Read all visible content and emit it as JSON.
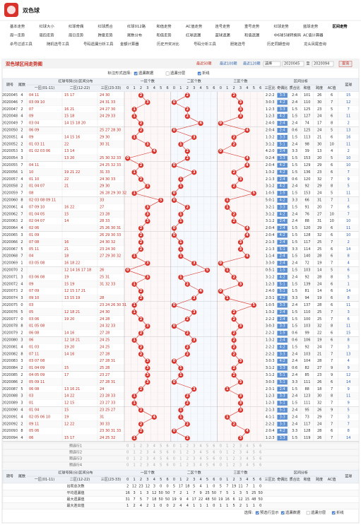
{
  "header": {
    "title": "双色球"
  },
  "nav": [
    [
      "基本走势",
      "红球大小",
      "红球奇偶",
      "红球质合",
      "红球012路",
      "和值走势",
      "AC值走势",
      "连号走势",
      "重号走势",
      "红球走势",
      "蓝球走势",
      "区间走势"
    ],
    [
      "周一走势",
      "周四走势",
      "周日走势",
      "跨度走势",
      "尾数分布",
      "和值走势",
      "红球遗漏",
      "蓝球遗漏",
      "和值遗漏",
      "中6球5球转换码",
      "AC值计算器"
    ],
    [
      "杀号过滤工具",
      "随机选号工具",
      "号码遗漏分析工具",
      "金额计算器",
      "历史开奖对比",
      "号码分析工具",
      "胆拖选号",
      "历史同期查询",
      "龙头凤尾查询"
    ]
  ],
  "nav_active": "区间走势",
  "panel": {
    "title": "双色球区间走势图",
    "ranges": [
      "最近50期",
      "最近100期",
      "最近120期"
    ],
    "select": "选择",
    "from": "2020045",
    "to_label": "至",
    "to": "2020094",
    "button": "查询"
  },
  "marking": {
    "label": "标注形式选择:",
    "options": [
      {
        "label": "遗漏数据",
        "checked": true
      },
      {
        "label": "遗漏分层",
        "checked": false
      },
      {
        "label": "折线",
        "checked": true
      }
    ]
  },
  "table": {
    "headers": {
      "period": "期号",
      "tail": "尾数",
      "zones_group": "红球号码(分)区间分布",
      "zones": [
        "一区(01-11)",
        "二区(12-22)",
        "三区(23-33)"
      ],
      "count_groups": [
        "一区个数",
        "二区个数",
        "三区个数"
      ],
      "digits": [
        0,
        1,
        2,
        3,
        4,
        5,
        6
      ],
      "analysis_group": "区间分析",
      "analysis": [
        "三区比",
        "奇偶比",
        "质合比",
        "和值",
        "跨度",
        "AC值"
      ],
      "blue": "蓝球"
    },
    "rows": [
      [
        "2020045",
        4,
        "04 11",
        "15 17",
        "24 30",
        2,
        2,
        2,
        "2:2:2",
        "3:3",
        "2:4",
        101,
        26,
        6,
        15
      ],
      [
        "2020046",
        7,
        "03 09 10",
        "",
        "24 31 33",
        3,
        0,
        3,
        "3:0:3",
        "4:2",
        "2:4",
        110,
        30,
        7,
        12
      ],
      [
        "2020047",
        2,
        "07",
        "16 21",
        "24 27 30",
        1,
        2,
        3,
        "1:2:3",
        "3:3",
        "1:5",
        125,
        23,
        5,
        7
      ],
      [
        "2020048",
        4,
        "09",
        "15 18",
        "24 29 33",
        1,
        2,
        3,
        "1:2:3",
        "4:2",
        "1:5",
        127,
        24,
        6,
        11
      ],
      [
        "2020049",
        7,
        "03 04",
        "14 15 18 20",
        "",
        2,
        4,
        0,
        "2:4:0",
        "2:4",
        "2:4",
        74,
        17,
        8,
        2
      ],
      [
        "2020050",
        2,
        "06 09",
        "",
        "25 27 28 30",
        2,
        0,
        4,
        "2:0:4",
        "2:4",
        "0:6",
        125,
        24,
        5,
        13
      ],
      [
        "2020051",
        4,
        "09",
        "14 15 16",
        "29 30",
        1,
        3,
        2,
        "1:3:2",
        "3:3",
        "1:5",
        113,
        21,
        6,
        16
      ],
      [
        "2020052",
        2,
        "01 03 11",
        "22",
        "30 31",
        3,
        1,
        2,
        "3:1:2",
        "5:1",
        "2:4",
        98,
        30,
        10,
        11
      ],
      [
        "2020053",
        3,
        "01 02 03 06",
        "13 14",
        "",
        4,
        2,
        0,
        "4:2:0",
        "2:4",
        "3:3",
        39,
        13,
        4,
        2
      ],
      [
        "2020054",
        3,
        "",
        "13 20",
        "25 30 32 33",
        0,
        2,
        4,
        "0:2:4",
        "3:3",
        "1:5",
        153,
        20,
        5,
        10
      ],
      [
        "2020055",
        7,
        "04 11",
        "",
        "24 25 32 33",
        2,
        0,
        4,
        "2:0:4",
        "4:2",
        "1:5",
        129,
        29,
        6,
        10
      ],
      [
        "2020056",
        1,
        "10",
        "19 21 22",
        "31 33",
        1,
        3,
        2,
        "1:3:2",
        "4:2",
        "1:5",
        136,
        23,
        6,
        7
      ],
      [
        "2020057",
        4,
        "01 10",
        "22",
        "24 30 33",
        2,
        1,
        3,
        "2:1:3",
        "2:4",
        "0:6",
        120,
        32,
        7,
        9
      ],
      [
        "2020058",
        2,
        "01 04 07",
        "21",
        "29 30",
        3,
        1,
        2,
        "3:1:2",
        "4:2",
        "2:4",
        92,
        29,
        8,
        5
      ],
      [
        "2020059",
        7,
        "08",
        "",
        "26 28 29 30 32",
        1,
        0,
        5,
        "1:0:5",
        "1:5",
        "1:5",
        153,
        24,
        5,
        11
      ],
      [
        "2020060",
        8,
        "02 03 08 09 11",
        "",
        "33",
        5,
        0,
        1,
        "5:0:1",
        "4:2",
        "3:3",
        66,
        31,
        7,
        1
      ],
      [
        "2020061",
        4,
        "07 09 10",
        "16 22",
        "27",
        3,
        2,
        1,
        "3:2:1",
        "3:3",
        "1:5",
        91,
        20,
        7,
        6
      ],
      [
        "2020062",
        7,
        "01 04 05",
        "15",
        "23 28",
        3,
        1,
        2,
        "3:1:2",
        "4:2",
        "2:4",
        76,
        27,
        10,
        7
      ],
      [
        "2020063",
        2,
        "02 04 07",
        "14",
        "28 33",
        3,
        1,
        2,
        "3:1:2",
        "2:4",
        "2:4",
        88,
        31,
        10,
        10
      ],
      [
        "2020064",
        4,
        "02 06",
        "",
        "25 26 30 31",
        2,
        0,
        4,
        "2:0:4",
        "2:4",
        "1:5",
        120,
        29,
        6,
        11
      ],
      [
        "2020065",
        3,
        "01 09",
        "",
        "26 29 30 33",
        2,
        0,
        4,
        "2:0:4",
        "4:2",
        "1:5",
        128,
        32,
        6,
        10
      ],
      [
        "2020066",
        2,
        "07 08",
        "16",
        "24 30 32",
        2,
        1,
        3,
        "2:1:3",
        "2:4",
        "1:5",
        117,
        25,
        7,
        2
      ],
      [
        "2020067",
        5,
        "05 11",
        "21",
        "23 24 30",
        2,
        1,
        3,
        "2:1:3",
        "5:1",
        "3:3",
        114,
        25,
        6,
        14
      ],
      [
        "2020068",
        7,
        "04",
        "18",
        "27 29 30 32",
        1,
        1,
        4,
        "1:1:4",
        "2:4",
        "1:5",
        140,
        28,
        6,
        8
      ],
      [
        "2020069",
        1,
        "03 05 08",
        "16 18 22",
        "",
        3,
        3,
        0,
        "3:3:0",
        "2:4",
        "2:4",
        72,
        19,
        7,
        4
      ],
      [
        "2020070",
        2,
        "",
        "12 14 16 17 18",
        "26",
        0,
        5,
        1,
        "0:5:1",
        "1:5",
        "1:5",
        103,
        14,
        5,
        6
      ],
      [
        "2020071",
        3,
        "03 06 08",
        "19",
        "25 31",
        3,
        1,
        2,
        "3:1:2",
        "4:2",
        "2:4",
        92,
        28,
        8,
        5
      ],
      [
        "2020072",
        4,
        "09",
        "15 19",
        "31 32 33",
        1,
        2,
        3,
        "1:2:3",
        "5:1",
        "1:5",
        139,
        24,
        6,
        1
      ],
      [
        "2020073",
        2,
        "07 09",
        "12 15 17 21",
        "",
        2,
        4,
        0,
        "2:4:0",
        "5:1",
        "1:5",
        81,
        14,
        6,
        14
      ],
      [
        "2020074",
        3,
        "09 10",
        "13 15 19",
        "28",
        2,
        3,
        1,
        "2:3:1",
        "4:2",
        "3:3",
        94,
        19,
        6,
        8
      ],
      [
        "2020075",
        0,
        "03",
        "",
        "23 24 26 30 31",
        1,
        0,
        5,
        "1:0:5",
        "3:3",
        "2:4",
        137,
        28,
        6,
        11
      ],
      [
        "2020076",
        5,
        "05",
        "12 18 21",
        "24 30",
        1,
        3,
        2,
        "1:3:2",
        "2:4",
        "1:5",
        110,
        25,
        7,
        3
      ],
      [
        "2020077",
        0,
        "03 06",
        "19 20",
        "24 28",
        2,
        2,
        2,
        "2:2:2",
        "2:4",
        "1:5",
        100,
        25,
        7,
        6
      ],
      [
        "2020078",
        8,
        "01 05 08",
        "",
        "24 32 33",
        3,
        0,
        3,
        "3:0:3",
        "3:3",
        "1:5",
        103,
        32,
        8,
        11
      ],
      [
        "2020079",
        2,
        "06 08",
        "14 16",
        "27 28",
        2,
        2,
        2,
        "2:2:2",
        "1:5",
        "0:6",
        99,
        22,
        6,
        15
      ],
      [
        "2020080",
        3,
        "06",
        "12 18 21",
        "24 25",
        1,
        3,
        2,
        "1:3:2",
        "2:4",
        "0:6",
        106,
        19,
        6,
        8
      ],
      [
        "2020081",
        4,
        "01 03",
        "19 20",
        "24 25",
        2,
        2,
        2,
        "2:2:2",
        "4:2",
        "1:5",
        92,
        24,
        7,
        3
      ],
      [
        "2020082",
        8,
        "07 11",
        "14 16",
        "27 28",
        2,
        2,
        2,
        "2:2:2",
        "3:3",
        "2:4",
        103,
        21,
        7,
        13
      ],
      [
        "2020083",
        3,
        "03 07 08",
        "",
        "27 28 31",
        3,
        0,
        3,
        "3:0:3",
        "4:2",
        "2:4",
        104,
        28,
        7,
        4
      ],
      [
        "2020084",
        2,
        "01 04 09",
        "15",
        "25 28",
        3,
        1,
        2,
        "3:1:2",
        "3:3",
        "0:6",
        82,
        27,
        9,
        9
      ],
      [
        "2020085",
        2,
        "04 05 09",
        "17",
        "23 27",
        3,
        1,
        2,
        "3:1:2",
        "5:1",
        "2:4",
        85,
        23,
        9,
        12
      ],
      [
        "2020086",
        2,
        "05 09 11",
        "",
        "27 28 31",
        3,
        0,
        3,
        "3:0:3",
        "5:1",
        "3:3",
        111,
        26,
        6,
        14
      ],
      [
        "2020087",
        5,
        "06 08",
        "13 16 21",
        "24",
        2,
        3,
        1,
        "2:3:1",
        "2:4",
        "1:5",
        88,
        18,
        7,
        9
      ],
      [
        "2020088",
        3,
        "03",
        "14 22",
        "23 28 33",
        1,
        2,
        3,
        "1:2:3",
        "3:3",
        "2:4",
        123,
        30,
        8,
        11
      ],
      [
        "2020089",
        3,
        "01",
        "12 15",
        "23 27 33",
        1,
        2,
        3,
        "1:2:3",
        "5:1",
        "1:5",
        111,
        32,
        7,
        9
      ],
      [
        "2020090",
        4,
        "01 04",
        "15",
        "23 25 27",
        2,
        1,
        3,
        "2:1:3",
        "5:1",
        "2:4",
        95,
        26,
        9,
        5
      ],
      [
        "2020091",
        4,
        "02 05 06 10",
        "19",
        "31",
        4,
        1,
        1,
        "4:1:1",
        "3:3",
        "2:4",
        73,
        29,
        7,
        3
      ],
      [
        "2020092",
        2,
        "09 11",
        "12 22",
        "30 33",
        2,
        2,
        2,
        "2:2:2",
        "3:3",
        "2:4",
        117,
        24,
        7,
        7
      ],
      [
        "2020093",
        8,
        "05 06",
        "",
        "23 30 31 33",
        2,
        0,
        4,
        "2:0:4",
        "4:2",
        "3:3",
        128,
        28,
        6,
        8
      ],
      [
        "2020094",
        4,
        "06",
        "15 17",
        "24 25 32",
        1,
        2,
        3,
        "1:2:3",
        "3:3",
        "1:5",
        119,
        26,
        7,
        14
      ]
    ]
  },
  "preselect": [
    "预选行1",
    "预选行2",
    "预选行3",
    "预选行4"
  ],
  "stats": [
    {
      "label": "出现总次数",
      "values": [
        2,
        12,
        23,
        12,
        3,
        0,
        0,
        5,
        17,
        18,
        5,
        4,
        1,
        0,
        5,
        7,
        19,
        11,
        7,
        1,
        0
      ]
    },
    {
      "label": "平均遗漏值",
      "values": [
        16,
        3,
        1,
        3,
        12,
        50,
        50,
        7,
        2,
        1,
        7,
        9,
        25,
        50,
        7,
        5,
        1,
        3,
        5,
        25,
        50
      ]
    },
    {
      "label": "最大遗漏值",
      "values": [
        31,
        7,
        5,
        7,
        18,
        50,
        50,
        19,
        9,
        4,
        17,
        22,
        48,
        50,
        19,
        16,
        6,
        12,
        15,
        48,
        50
      ]
    },
    {
      "label": "最大连出值",
      "values": [
        1,
        2,
        4,
        2,
        1,
        0,
        0,
        2,
        4,
        4,
        1,
        1,
        1,
        0,
        1,
        1,
        5,
        2,
        1,
        1,
        0
      ]
    }
  ],
  "footer": {
    "label": "选择:",
    "options": [
      {
        "label": "预选行显示",
        "checked": true
      },
      {
        "label": "遗漏数据",
        "checked": true
      },
      {
        "label": "遗漏分层",
        "checked": false
      },
      {
        "label": "折线",
        "checked": true
      }
    ]
  }
}
